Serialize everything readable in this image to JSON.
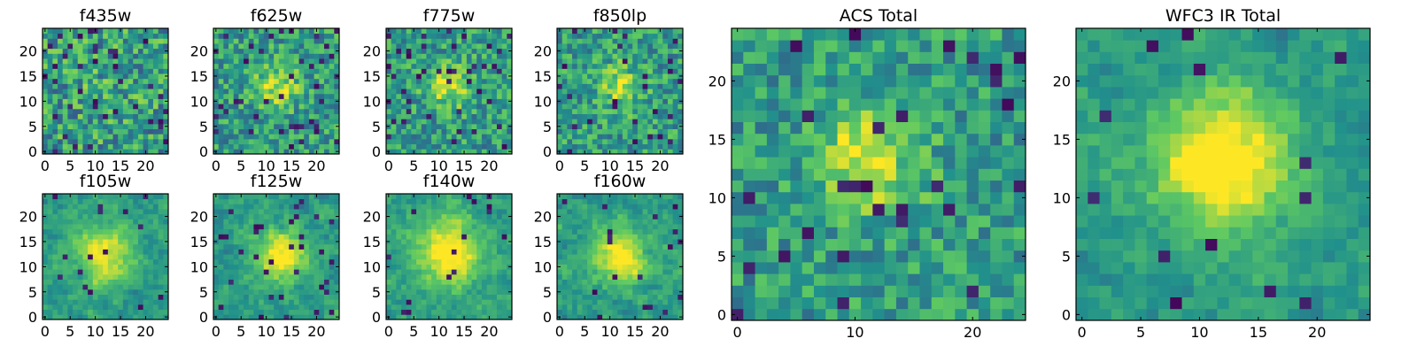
{
  "chart_data": [
    {
      "type": "heatmap",
      "title": "f435w",
      "seed": 11,
      "blob_strength": 0.05,
      "blob_center": [
        12,
        13
      ],
      "blob_width": 5.0,
      "noise": 0.55,
      "dark_rate": 0.07,
      "smooth": 0,
      "xticks": [
        0,
        5,
        10,
        15,
        20
      ],
      "yticks": [
        0,
        5,
        10,
        15,
        20
      ],
      "xlabels": [
        "0",
        "5",
        "10",
        "15",
        "20"
      ],
      "ylabels": [
        "0",
        "5",
        "10",
        "15",
        "20"
      ],
      "xlim": [
        0,
        25
      ],
      "ylim": [
        0,
        25
      ]
    },
    {
      "type": "heatmap",
      "title": "f625w",
      "seed": 22,
      "blob_strength": 0.35,
      "blob_center": [
        12,
        13
      ],
      "blob_width": 3.0,
      "noise": 0.45,
      "dark_rate": 0.06,
      "smooth": 0,
      "xticks": [
        0,
        5,
        10,
        15,
        20
      ],
      "yticks": [
        0,
        5,
        10,
        15,
        20
      ],
      "xlabels": [
        "0",
        "5",
        "10",
        "15",
        "20"
      ],
      "ylabels": [
        "0",
        "5",
        "10",
        "15",
        "20"
      ],
      "xlim": [
        0,
        25
      ],
      "ylim": [
        0,
        25
      ]
    },
    {
      "type": "heatmap",
      "title": "f775w",
      "seed": 33,
      "blob_strength": 0.35,
      "blob_center": [
        12,
        13
      ],
      "blob_width": 3.0,
      "noise": 0.45,
      "dark_rate": 0.05,
      "smooth": 0,
      "xticks": [
        0,
        5,
        10,
        15,
        20
      ],
      "yticks": [
        0,
        5,
        10,
        15,
        20
      ],
      "xlabels": [
        "0",
        "5",
        "10",
        "15",
        "20"
      ],
      "ylabels": [
        "0",
        "5",
        "10",
        "15",
        "20"
      ],
      "xlim": [
        0,
        25
      ],
      "ylim": [
        0,
        25
      ]
    },
    {
      "type": "heatmap",
      "title": "f850lp",
      "seed": 44,
      "blob_strength": 0.3,
      "blob_center": [
        12,
        13
      ],
      "blob_width": 3.0,
      "noise": 0.45,
      "dark_rate": 0.06,
      "smooth": 0,
      "xticks": [
        0,
        5,
        10,
        15,
        20
      ],
      "yticks": [
        0,
        5,
        10,
        15,
        20
      ],
      "xlabels": [
        "0",
        "5",
        "10",
        "15",
        "20"
      ],
      "ylabels": [
        "0",
        "5",
        "10",
        "15",
        "20"
      ],
      "xlim": [
        0,
        25
      ],
      "ylim": [
        0,
        25
      ]
    },
    {
      "type": "heatmap",
      "title": "f105w",
      "seed": 55,
      "blob_strength": 0.45,
      "blob_center": [
        12,
        13
      ],
      "blob_width": 4.0,
      "noise": 0.35,
      "dark_rate": 0.03,
      "smooth": 1,
      "xticks": [
        0,
        5,
        10,
        15,
        20
      ],
      "yticks": [
        0,
        5,
        10,
        15,
        20
      ],
      "xlabels": [
        "0",
        "5",
        "10",
        "15",
        "20"
      ],
      "ylabels": [
        "0",
        "5",
        "10",
        "15",
        "20"
      ],
      "xlim": [
        0,
        25
      ],
      "ylim": [
        0,
        25
      ]
    },
    {
      "type": "heatmap",
      "title": "f125w",
      "seed": 66,
      "blob_strength": 0.5,
      "blob_center": [
        13,
        12
      ],
      "blob_width": 3.5,
      "noise": 0.4,
      "dark_rate": 0.04,
      "smooth": 1,
      "xticks": [
        0,
        5,
        10,
        15,
        20
      ],
      "yticks": [
        0,
        5,
        10,
        15,
        20
      ],
      "xlabels": [
        "0",
        "5",
        "10",
        "15",
        "20"
      ],
      "ylabels": [
        "0",
        "5",
        "10",
        "15",
        "20"
      ],
      "xlim": [
        0,
        25
      ],
      "ylim": [
        0,
        25
      ]
    },
    {
      "type": "heatmap",
      "title": "f140w",
      "seed": 77,
      "blob_strength": 0.5,
      "blob_center": [
        12,
        13
      ],
      "blob_width": 4.5,
      "noise": 0.35,
      "dark_rate": 0.03,
      "smooth": 1,
      "xticks": [
        0,
        5,
        10,
        15,
        20
      ],
      "yticks": [
        0,
        5,
        10,
        15,
        20
      ],
      "xlabels": [
        "0",
        "5",
        "10",
        "15",
        "20"
      ],
      "ylabels": [
        "0",
        "5",
        "10",
        "15",
        "20"
      ],
      "xlim": [
        0,
        25
      ],
      "ylim": [
        0,
        25
      ]
    },
    {
      "type": "heatmap",
      "title": "f160w",
      "seed": 88,
      "blob_strength": 0.5,
      "blob_center": [
        12,
        12
      ],
      "blob_width": 3.5,
      "noise": 0.4,
      "dark_rate": 0.04,
      "smooth": 1,
      "xticks": [
        0,
        5,
        10,
        15,
        20
      ],
      "yticks": [
        0,
        5,
        10,
        15,
        20
      ],
      "xlabels": [
        "0",
        "5",
        "10",
        "15",
        "20"
      ],
      "ylabels": [
        "0",
        "5",
        "10",
        "15",
        "20"
      ],
      "xlim": [
        0,
        25
      ],
      "ylim": [
        0,
        25
      ]
    },
    {
      "type": "heatmap",
      "title": "ACS Total",
      "seed": 99,
      "blob_strength": 0.4,
      "blob_center": [
        11,
        13
      ],
      "blob_width": 3.0,
      "noise": 0.4,
      "dark_rate": 0.04,
      "smooth": 0,
      "xticks": [
        0,
        10,
        20
      ],
      "yticks": [
        0,
        5,
        10,
        15,
        20
      ],
      "xlabels": [
        "0",
        "10",
        "20"
      ],
      "ylabels": [
        "0",
        "5",
        "10",
        "15",
        "20"
      ],
      "xlim": [
        0,
        25
      ],
      "ylim": [
        0,
        25
      ]
    },
    {
      "type": "heatmap",
      "title": "WFC3 IR Total",
      "seed": 111,
      "blob_strength": 0.55,
      "blob_center": [
        12,
        13
      ],
      "blob_width": 4.0,
      "noise": 0.3,
      "dark_rate": 0.025,
      "smooth": 1,
      "xticks": [
        0,
        5,
        10,
        15,
        20
      ],
      "yticks": [
        0,
        5,
        10,
        15,
        20
      ],
      "xlabels": [
        "0",
        "5",
        "10",
        "15",
        "20"
      ],
      "ylabels": [
        "0",
        "5",
        "10",
        "15",
        "20"
      ],
      "xlim": [
        0,
        25
      ],
      "ylim": [
        0,
        25
      ]
    }
  ],
  "colormap": [
    "#440154",
    "#3b528b",
    "#21918c",
    "#5ec962",
    "#fde725"
  ]
}
